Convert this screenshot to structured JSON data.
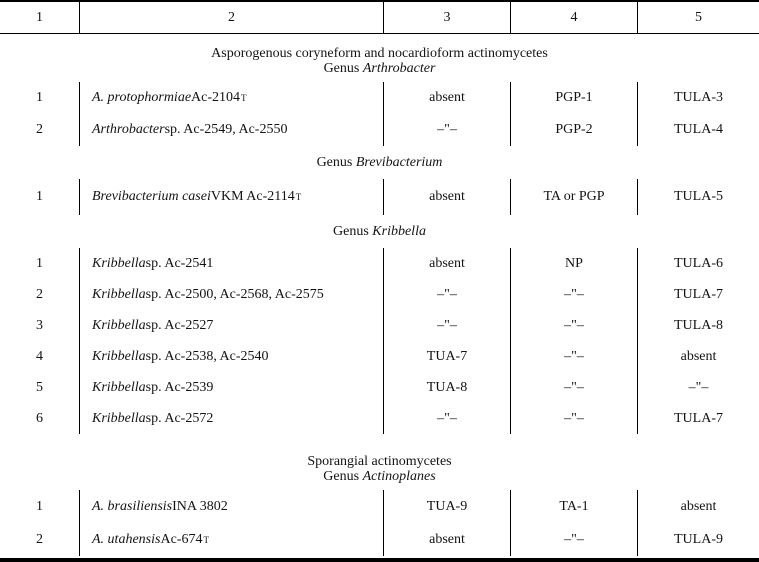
{
  "page": {
    "background": "#ffffff",
    "text_color": "#131313",
    "rule_color": "#000000"
  },
  "table": {
    "header": {
      "columns": [
        "1",
        "2",
        "3",
        "4",
        "5"
      ]
    },
    "sections": [
      {
        "heading_lines": [
          "Asporogenous coryneform and nocardioform actinomycetes"
        ],
        "genus_prefix": "Genus",
        "genus_name": "Arthrobacter",
        "rows": [
          {
            "num": "1",
            "name_italic": "A. protophormiae",
            "name_normal": " Ac-2104",
            "name_sup": "T",
            "col3": "absent",
            "col4": "PGP-1",
            "col5": "TULA-3"
          },
          {
            "num": "2",
            "name_italic": "Arthrobacter",
            "name_normal": " sp. Ac-2549, Ac-2550",
            "col3": "–\"–",
            "col4": "PGP-2",
            "col5": "TULA-4"
          }
        ]
      },
      {
        "heading_lines": [],
        "genus_prefix": "Genus",
        "genus_name": "Brevibacterium",
        "rows": [
          {
            "num": "1",
            "name_italic": "Brevibacterium casei",
            "name_normal": " VKM Ac-2114",
            "name_sup": "T",
            "col3": "absent",
            "col4": "TA or PGP",
            "col5": "TULA-5"
          }
        ]
      },
      {
        "heading_lines": [],
        "genus_prefix": "Genus",
        "genus_name": "Kribbella",
        "rows": [
          {
            "num": "1",
            "name_italic": "Kribbella",
            "name_normal": " sp. Ac-2541",
            "col3": "absent",
            "col4": "NP",
            "col5": "TULA-6"
          },
          {
            "num": "2",
            "name_italic": "Kribbella",
            "name_normal": " sp. Ac-2500, Ac-2568, Ac-2575",
            "col3": "–\"–",
            "col4": "–\"–",
            "col5": "TULA-7"
          },
          {
            "num": "3",
            "name_italic": "Kribbella",
            "name_normal": " sp. Ac-2527",
            "col3": "–\"–",
            "col4": "–\"–",
            "col5": "TULA-8"
          },
          {
            "num": "4",
            "name_italic": "Kribbella",
            "name_normal": " sp. Ac-2538, Ac-2540",
            "col3": "TUA-7",
            "col4": "–\"–",
            "col5": "absent"
          },
          {
            "num": "5",
            "name_italic": "Kribbella",
            "name_normal": " sp. Ac-2539",
            "col3": "TUA-8",
            "col4": "–\"–",
            "col5": "–\"–"
          },
          {
            "num": "6",
            "name_italic": "Kribbella",
            "name_normal": " sp. Ac-2572",
            "col3": "–\"–",
            "col4": "–\"–",
            "col5": "TULA-7"
          }
        ]
      },
      {
        "heading_lines": [
          "Sporangial actinomycetes"
        ],
        "genus_prefix": "Genus",
        "genus_name": "Actinoplanes",
        "rows": [
          {
            "num": "1",
            "name_italic": "A. brasiliensis",
            "name_normal": " INA 3802",
            "col3": "TUA-9",
            "col4": "TA-1",
            "col5": "absent"
          },
          {
            "num": "2",
            "name_italic": "A. utahensis",
            "name_normal": " Ac-674",
            "name_sup": "T",
            "col3": "absent",
            "col4": "–\"–",
            "col5": "TULA-9"
          }
        ]
      }
    ]
  }
}
